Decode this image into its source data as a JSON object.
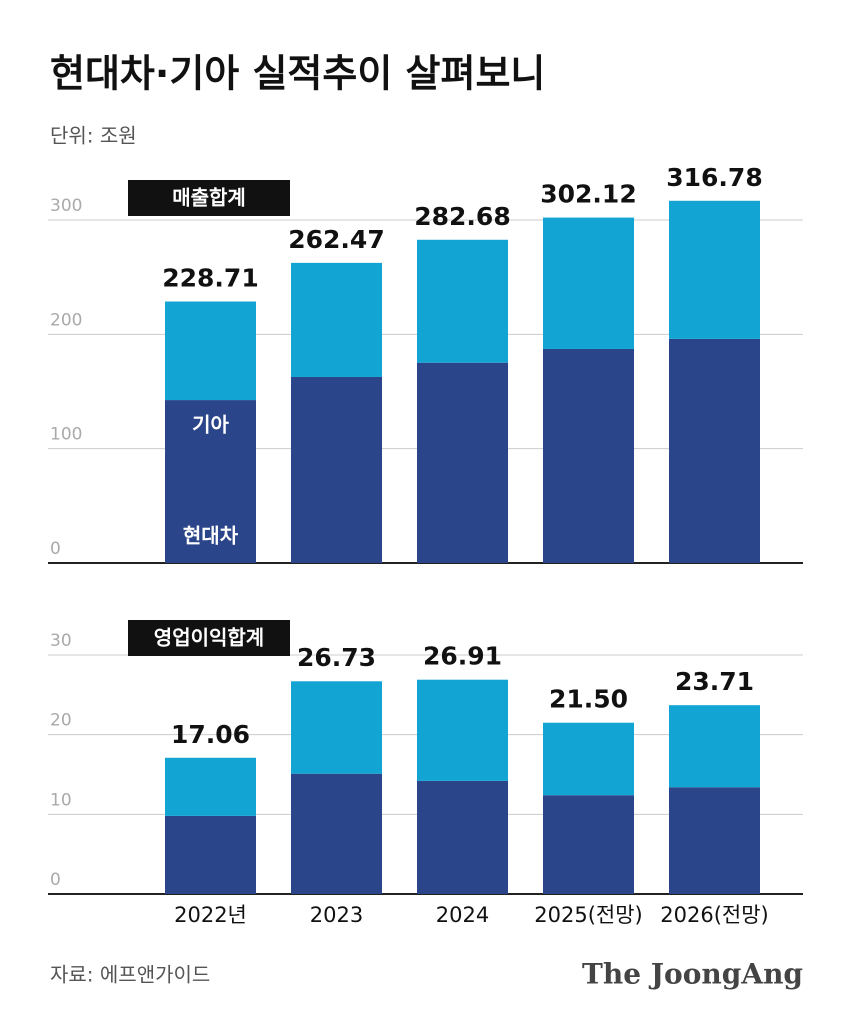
{
  "title": "현대차·기아 실적추이 살펴보니",
  "unit": "단위: 조원",
  "source": "자료: 에프앤가이드",
  "logo": "The JoongAng",
  "chart_data": [
    {
      "type": "bar",
      "stacked": true,
      "label": "매출합계",
      "ylim": [
        0,
        330
      ],
      "yticks": [
        0,
        100,
        200,
        300
      ],
      "grid": true,
      "series": [
        {
          "name": "현대차",
          "color": "#2a4589",
          "values": [
            142.5,
            162.7,
            175.2,
            187.2,
            196
          ]
        },
        {
          "name": "기아",
          "color": "#12a5d4",
          "values": [
            86.2,
            99.8,
            107.5,
            114.9,
            120.8
          ]
        }
      ],
      "totals": [
        228.71,
        262.47,
        282.68,
        302.12,
        316.78
      ],
      "total_labels": [
        "228.71",
        "262.47",
        "282.68",
        "302.12",
        "316.78"
      ]
    },
    {
      "type": "bar",
      "stacked": true,
      "label": "영업이익합계",
      "categories": [
        "2022년",
        "2023",
        "2024",
        "2025(전망)",
        "2026(전망)"
      ],
      "ylim": [
        0,
        33
      ],
      "yticks": [
        0,
        10,
        20,
        30
      ],
      "grid": true,
      "series": [
        {
          "color": "#2a4589",
          "values": [
            9.8,
            15.1,
            14.2,
            12.4,
            13.4
          ]
        },
        {
          "color": "#12a5d4",
          "values": [
            7.3,
            11.6,
            12.7,
            9.1,
            10.3
          ]
        }
      ],
      "totals": [
        17.06,
        26.73,
        26.91,
        21.5,
        23.71
      ],
      "total_labels": [
        "17.06",
        "26.73",
        "26.91",
        "21.50",
        "23.71"
      ]
    }
  ]
}
